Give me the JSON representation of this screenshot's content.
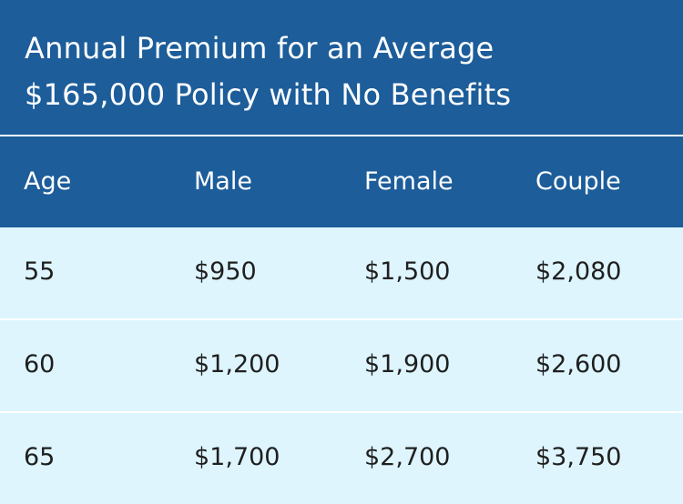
{
  "title": {
    "line1": "Annual Premium for an Average",
    "line2": "$165,000 Policy with No Benefits"
  },
  "table": {
    "headers": [
      "Age",
      "Male",
      "Female",
      "Couple"
    ],
    "rows": [
      [
        "55",
        "$950",
        "$1,500",
        "$2,080"
      ],
      [
        "60",
        "$1,200",
        "$1,900",
        "$2,600"
      ],
      [
        "65",
        "$1,700",
        "$2,700",
        "$3,750"
      ]
    ]
  },
  "colors": {
    "header_background": "#1c5d9a",
    "row_background": "#def5fe",
    "separator": "#ffffff"
  }
}
